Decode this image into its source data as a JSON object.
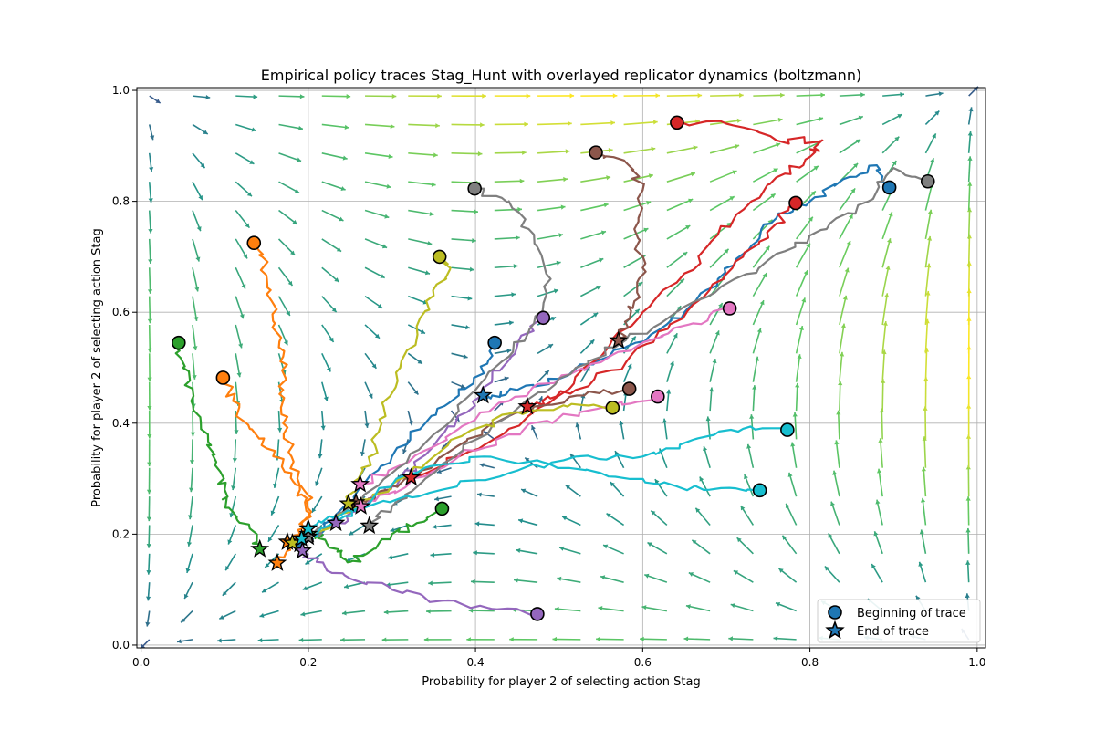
{
  "chart_data": {
    "type": "line",
    "title": "Empirical policy traces Stag_Hunt with overlayed replicator dynamics (boltzmann)",
    "xlabel": "Probability for player 2 of selecting action Stag",
    "ylabel": "Probability for player 2 of selecting action Stag",
    "xlim": [
      -0.005,
      1.01
    ],
    "ylim": [
      -0.005,
      1.005
    ],
    "xticks": [
      0.0,
      0.2,
      0.4,
      0.6,
      0.8,
      1.0
    ],
    "yticks": [
      0.0,
      0.2,
      0.4,
      0.6,
      0.8,
      1.0
    ],
    "xtick_labels": [
      "0.0",
      "0.2",
      "0.4",
      "0.6",
      "0.8",
      "1.0"
    ],
    "ytick_labels": [
      "0.0",
      "0.2",
      "0.4",
      "0.6",
      "0.8",
      "1.0"
    ],
    "grid": true,
    "legend": {
      "position": "lower-right",
      "entries": [
        "Beginning of trace",
        "End of trace"
      ]
    },
    "vector_field": {
      "grid_steps": 20,
      "min": 0.01,
      "max": 0.99,
      "colormap": "viridis",
      "equilibria": [
        [
          0,
          0
        ],
        [
          1,
          1
        ],
        [
          0.4,
          0.4
        ]
      ]
    },
    "series": [
      {
        "color": "#1f77b4",
        "start": [
          0.895,
          0.825
        ],
        "end": [
          0.409,
          0.45
        ],
        "points": [
          [
            0.895,
            0.825
          ],
          [
            0.88,
            0.865
          ],
          [
            0.84,
            0.84
          ],
          [
            0.8,
            0.8
          ],
          [
            0.76,
            0.77
          ],
          [
            0.73,
            0.72
          ],
          [
            0.69,
            0.66
          ],
          [
            0.65,
            0.6
          ],
          [
            0.61,
            0.56
          ],
          [
            0.56,
            0.52
          ],
          [
            0.5,
            0.48
          ],
          [
            0.45,
            0.46
          ],
          [
            0.42,
            0.45
          ],
          [
            0.409,
            0.45
          ]
        ]
      },
      {
        "color": "#1f77b4",
        "start": [
          0.423,
          0.545
        ],
        "end": [
          0.19,
          0.182
        ],
        "points": [
          [
            0.423,
            0.545
          ],
          [
            0.41,
            0.49
          ],
          [
            0.38,
            0.45
          ],
          [
            0.34,
            0.4
          ],
          [
            0.3,
            0.34
          ],
          [
            0.26,
            0.28
          ],
          [
            0.23,
            0.23
          ],
          [
            0.21,
            0.2
          ],
          [
            0.19,
            0.182
          ]
        ]
      },
      {
        "color": "#ff7f0e",
        "start": [
          0.135,
          0.725
        ],
        "end": [
          0.163,
          0.148
        ],
        "points": [
          [
            0.135,
            0.725
          ],
          [
            0.145,
            0.7
          ],
          [
            0.155,
            0.64
          ],
          [
            0.16,
            0.58
          ],
          [
            0.17,
            0.52
          ],
          [
            0.17,
            0.46
          ],
          [
            0.17,
            0.4
          ],
          [
            0.18,
            0.34
          ],
          [
            0.19,
            0.28
          ],
          [
            0.2,
            0.24
          ],
          [
            0.19,
            0.2
          ],
          [
            0.175,
            0.17
          ],
          [
            0.163,
            0.148
          ]
        ]
      },
      {
        "color": "#ff7f0e",
        "start": [
          0.098,
          0.482
        ],
        "end": [
          0.175,
          0.186
        ],
        "points": [
          [
            0.098,
            0.482
          ],
          [
            0.11,
            0.44
          ],
          [
            0.13,
            0.39
          ],
          [
            0.16,
            0.35
          ],
          [
            0.18,
            0.31
          ],
          [
            0.2,
            0.27
          ],
          [
            0.2,
            0.23
          ],
          [
            0.19,
            0.2
          ],
          [
            0.175,
            0.186
          ]
        ]
      },
      {
        "color": "#2ca02c",
        "start": [
          0.045,
          0.545
        ],
        "end": [
          0.142,
          0.173
        ],
        "points": [
          [
            0.045,
            0.545
          ],
          [
            0.05,
            0.5
          ],
          [
            0.06,
            0.44
          ],
          [
            0.08,
            0.38
          ],
          [
            0.09,
            0.33
          ],
          [
            0.1,
            0.28
          ],
          [
            0.11,
            0.24
          ],
          [
            0.13,
            0.21
          ],
          [
            0.142,
            0.173
          ]
        ]
      },
      {
        "color": "#2ca02c",
        "start": [
          0.36,
          0.246
        ],
        "end": [
          0.2,
          0.2
        ],
        "points": [
          [
            0.36,
            0.246
          ],
          [
            0.33,
            0.22
          ],
          [
            0.3,
            0.2
          ],
          [
            0.27,
            0.165
          ],
          [
            0.25,
            0.15
          ],
          [
            0.24,
            0.17
          ],
          [
            0.22,
            0.19
          ],
          [
            0.2,
            0.2
          ]
        ]
      },
      {
        "color": "#d62728",
        "start": [
          0.641,
          0.942
        ],
        "end": [
          0.323,
          0.302
        ],
        "points": [
          [
            0.641,
            0.942
          ],
          [
            0.7,
            0.94
          ],
          [
            0.76,
            0.91
          ],
          [
            0.815,
            0.91
          ],
          [
            0.8,
            0.88
          ],
          [
            0.77,
            0.85
          ],
          [
            0.73,
            0.8
          ],
          [
            0.69,
            0.74
          ],
          [
            0.65,
            0.67
          ],
          [
            0.6,
            0.6
          ],
          [
            0.55,
            0.52
          ],
          [
            0.5,
            0.45
          ],
          [
            0.44,
            0.39
          ],
          [
            0.38,
            0.34
          ],
          [
            0.323,
            0.302
          ]
        ]
      },
      {
        "color": "#d62728",
        "start": [
          0.783,
          0.797
        ],
        "end": [
          0.462,
          0.43
        ],
        "points": [
          [
            0.783,
            0.797
          ],
          [
            0.76,
            0.76
          ],
          [
            0.72,
            0.7
          ],
          [
            0.68,
            0.64
          ],
          [
            0.63,
            0.57
          ],
          [
            0.58,
            0.51
          ],
          [
            0.52,
            0.46
          ],
          [
            0.48,
            0.44
          ],
          [
            0.462,
            0.43
          ]
        ]
      },
      {
        "color": "#9467bd",
        "start": [
          0.481,
          0.59
        ],
        "end": [
          0.233,
          0.22
        ],
        "points": [
          [
            0.481,
            0.59
          ],
          [
            0.45,
            0.54
          ],
          [
            0.42,
            0.48
          ],
          [
            0.39,
            0.42
          ],
          [
            0.35,
            0.36
          ],
          [
            0.31,
            0.3
          ],
          [
            0.27,
            0.25
          ],
          [
            0.233,
            0.22
          ]
        ]
      },
      {
        "color": "#9467bd",
        "start": [
          0.474,
          0.056
        ],
        "end": [
          0.193,
          0.17
        ],
        "points": [
          [
            0.474,
            0.056
          ],
          [
            0.42,
            0.065
          ],
          [
            0.36,
            0.08
          ],
          [
            0.3,
            0.1
          ],
          [
            0.25,
            0.12
          ],
          [
            0.21,
            0.15
          ],
          [
            0.193,
            0.17
          ]
        ]
      },
      {
        "color": "#8c564b",
        "start": [
          0.544,
          0.888
        ],
        "end": [
          0.571,
          0.549
        ],
        "points": [
          [
            0.544,
            0.888
          ],
          [
            0.58,
            0.87
          ],
          [
            0.6,
            0.82
          ],
          [
            0.59,
            0.75
          ],
          [
            0.6,
            0.68
          ],
          [
            0.59,
            0.62
          ],
          [
            0.58,
            0.58
          ],
          [
            0.571,
            0.549
          ]
        ]
      },
      {
        "color": "#8c564b",
        "start": [
          0.584,
          0.462
        ],
        "end": [
          0.257,
          0.257
        ],
        "points": [
          [
            0.584,
            0.462
          ],
          [
            0.53,
            0.45
          ],
          [
            0.47,
            0.43
          ],
          [
            0.42,
            0.4
          ],
          [
            0.37,
            0.35
          ],
          [
            0.32,
            0.3
          ],
          [
            0.28,
            0.27
          ],
          [
            0.257,
            0.257
          ]
        ]
      },
      {
        "color": "#e377c2",
        "start": [
          0.704,
          0.607
        ],
        "end": [
          0.262,
          0.29
        ],
        "points": [
          [
            0.704,
            0.607
          ],
          [
            0.66,
            0.58
          ],
          [
            0.61,
            0.55
          ],
          [
            0.55,
            0.51
          ],
          [
            0.5,
            0.48
          ],
          [
            0.44,
            0.44
          ],
          [
            0.38,
            0.39
          ],
          [
            0.32,
            0.33
          ],
          [
            0.262,
            0.29
          ]
        ]
      },
      {
        "color": "#e377c2",
        "start": [
          0.618,
          0.448
        ],
        "end": [
          0.263,
          0.25
        ],
        "points": [
          [
            0.618,
            0.448
          ],
          [
            0.56,
            0.43
          ],
          [
            0.5,
            0.41
          ],
          [
            0.44,
            0.38
          ],
          [
            0.38,
            0.34
          ],
          [
            0.32,
            0.29
          ],
          [
            0.28,
            0.26
          ],
          [
            0.263,
            0.25
          ]
        ]
      },
      {
        "color": "#7f7f7f",
        "start": [
          0.399,
          0.823
        ],
        "end": [
          0.2,
          0.195
        ],
        "points": [
          [
            0.399,
            0.823
          ],
          [
            0.44,
            0.8
          ],
          [
            0.47,
            0.74
          ],
          [
            0.49,
            0.66
          ],
          [
            0.47,
            0.58
          ],
          [
            0.44,
            0.52
          ],
          [
            0.4,
            0.46
          ],
          [
            0.35,
            0.38
          ],
          [
            0.3,
            0.31
          ],
          [
            0.25,
            0.25
          ],
          [
            0.22,
            0.21
          ],
          [
            0.2,
            0.195
          ]
        ]
      },
      {
        "color": "#7f7f7f",
        "start": [
          0.941,
          0.836
        ],
        "end": [
          0.273,
          0.215
        ],
        "points": [
          [
            0.941,
            0.836
          ],
          [
            0.9,
            0.86
          ],
          [
            0.87,
            0.8
          ],
          [
            0.82,
            0.75
          ],
          [
            0.77,
            0.71
          ],
          [
            0.71,
            0.66
          ],
          [
            0.64,
            0.6
          ],
          [
            0.58,
            0.55
          ],
          [
            0.52,
            0.5
          ],
          [
            0.46,
            0.44
          ],
          [
            0.4,
            0.37
          ],
          [
            0.34,
            0.3
          ],
          [
            0.3,
            0.25
          ],
          [
            0.273,
            0.215
          ]
        ]
      },
      {
        "color": "#bcbd22",
        "start": [
          0.357,
          0.7
        ],
        "end": [
          0.248,
          0.255
        ],
        "points": [
          [
            0.357,
            0.7
          ],
          [
            0.37,
            0.68
          ],
          [
            0.35,
            0.63
          ],
          [
            0.33,
            0.57
          ],
          [
            0.31,
            0.5
          ],
          [
            0.29,
            0.43
          ],
          [
            0.28,
            0.36
          ],
          [
            0.26,
            0.3
          ],
          [
            0.248,
            0.255
          ]
        ]
      },
      {
        "color": "#bcbd22",
        "start": [
          0.564,
          0.428
        ],
        "end": [
          0.181,
          0.184
        ],
        "points": [
          [
            0.564,
            0.428
          ],
          [
            0.51,
            0.43
          ],
          [
            0.45,
            0.42
          ],
          [
            0.4,
            0.39
          ],
          [
            0.35,
            0.34
          ],
          [
            0.3,
            0.29
          ],
          [
            0.25,
            0.24
          ],
          [
            0.21,
            0.2
          ],
          [
            0.181,
            0.184
          ]
        ]
      },
      {
        "color": "#17becf",
        "start": [
          0.773,
          0.388
        ],
        "end": [
          0.2,
          0.21
        ],
        "points": [
          [
            0.773,
            0.388
          ],
          [
            0.72,
            0.39
          ],
          [
            0.66,
            0.37
          ],
          [
            0.6,
            0.34
          ],
          [
            0.52,
            0.34
          ],
          [
            0.44,
            0.31
          ],
          [
            0.36,
            0.28
          ],
          [
            0.29,
            0.26
          ],
          [
            0.23,
            0.23
          ],
          [
            0.2,
            0.21
          ]
        ]
      },
      {
        "color": "#17becf",
        "start": [
          0.74,
          0.279
        ],
        "end": [
          0.192,
          0.192
        ],
        "points": [
          [
            0.74,
            0.279
          ],
          [
            0.68,
            0.28
          ],
          [
            0.62,
            0.29
          ],
          [
            0.55,
            0.31
          ],
          [
            0.48,
            0.33
          ],
          [
            0.41,
            0.34
          ],
          [
            0.34,
            0.32
          ],
          [
            0.28,
            0.27
          ],
          [
            0.23,
            0.22
          ],
          [
            0.192,
            0.192
          ]
        ]
      }
    ]
  }
}
